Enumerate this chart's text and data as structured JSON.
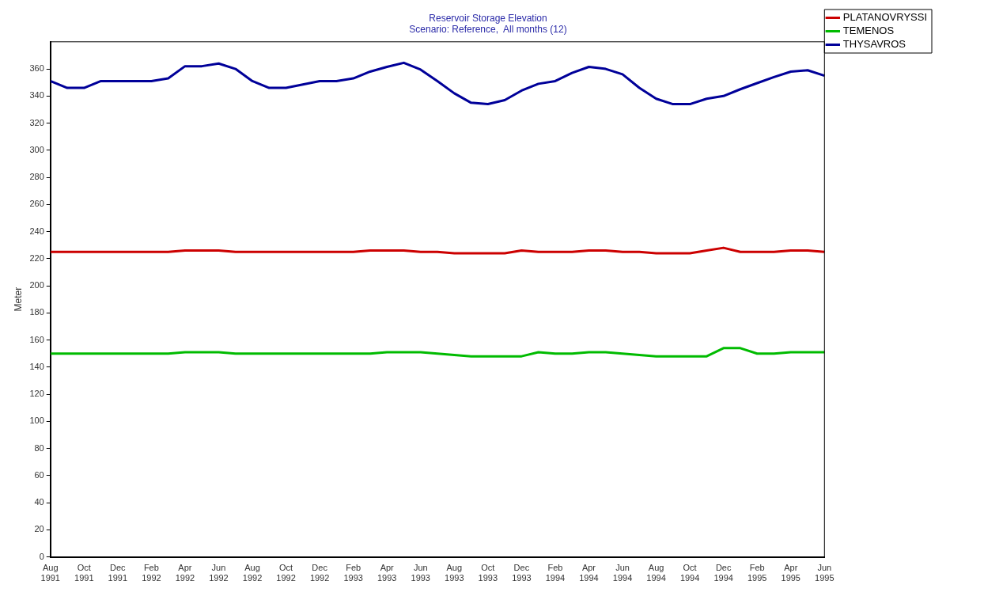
{
  "chart_data": {
    "type": "line",
    "title": "Reservoir Storage Elevation",
    "subtitle": "Scenario: Reference,  All months (12)",
    "ylabel": "Meter",
    "categories": [
      "Aug 1991",
      null,
      "Oct 1991",
      null,
      "Dec 1991",
      null,
      "Feb 1992",
      null,
      "Apr 1992",
      null,
      "Jun 1992",
      null,
      "Aug 1992",
      null,
      "Oct 1992",
      null,
      "Dec 1992",
      null,
      "Feb 1993",
      null,
      "Apr 1993",
      null,
      "Jun 1993",
      null,
      "Aug 1993",
      null,
      "Oct 1993",
      null,
      "Dec 1993",
      null,
      "Feb 1994",
      null,
      "Apr 1994",
      null,
      "Jun 1994",
      null,
      "Aug 1994",
      null,
      "Oct 1994",
      null,
      "Dec 1994",
      null,
      "Feb 1995",
      null,
      "Apr 1995",
      null,
      "Jun 1995"
    ],
    "series": [
      {
        "name": "PLATANOVRYSSI",
        "color": "#cc0000",
        "values": [
          225,
          225,
          225,
          225,
          225,
          225,
          225,
          225,
          226,
          226,
          226,
          225,
          225,
          225,
          225,
          225,
          225,
          225,
          225,
          226,
          226,
          226,
          225,
          225,
          224,
          224,
          224,
          224,
          226,
          225,
          225,
          225,
          226,
          226,
          225,
          225,
          224,
          224,
          224,
          226,
          228,
          225,
          225,
          225,
          226,
          226,
          225
        ]
      },
      {
        "name": "TEMENOS",
        "color": "#00bb00",
        "values": [
          150,
          150,
          150,
          150,
          150,
          150,
          150,
          150,
          151,
          151,
          151,
          150,
          150,
          150,
          150,
          150,
          150,
          150,
          150,
          150,
          151,
          151,
          151,
          150,
          149,
          148,
          148,
          148,
          148,
          151,
          150,
          150,
          151,
          151,
          150,
          149,
          148,
          148,
          148,
          148,
          154,
          154,
          150,
          150,
          151,
          151,
          151
        ]
      },
      {
        "name": "THYSAVROS",
        "color": "#000099",
        "values": [
          351,
          346,
          346,
          351,
          351,
          351,
          351,
          353,
          362,
          362,
          364,
          360,
          351,
          346,
          346,
          348.5,
          351,
          351,
          353,
          358,
          361.5,
          364.5,
          359.5,
          351,
          342,
          335,
          334,
          337,
          344,
          349,
          351,
          357,
          361.5,
          360,
          356,
          346,
          338,
          334,
          334,
          338,
          340,
          345,
          349.5,
          354,
          358,
          359,
          355
        ]
      }
    ],
    "ylim": [
      0,
      380
    ],
    "yticks": [
      0,
      20,
      40,
      60,
      80,
      100,
      120,
      140,
      160,
      180,
      200,
      220,
      240,
      260,
      280,
      300,
      320,
      340,
      360
    ],
    "grid": false,
    "legend": "top right",
    "marker": "none",
    "line_style": "solid"
  }
}
